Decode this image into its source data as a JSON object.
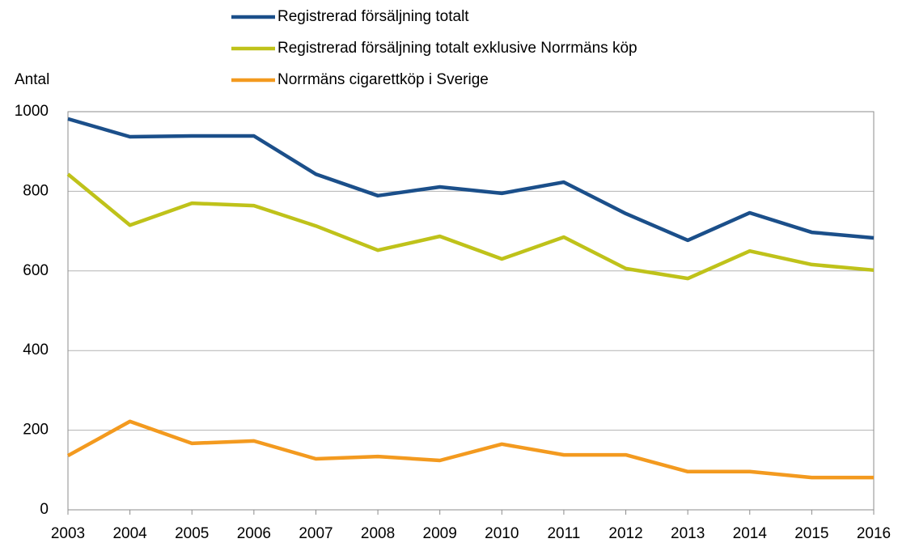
{
  "chart_data": {
    "type": "line",
    "y_axis_label": "Antal",
    "x": [
      2003,
      2004,
      2005,
      2006,
      2007,
      2008,
      2009,
      2010,
      2011,
      2012,
      2013,
      2014,
      2015,
      2016
    ],
    "xlim": [
      2003,
      2016
    ],
    "xticks": [
      2003,
      2004,
      2005,
      2006,
      2007,
      2008,
      2009,
      2010,
      2011,
      2012,
      2013,
      2014,
      2015,
      2016
    ],
    "ylim": [
      0,
      1000
    ],
    "yticks": [
      0,
      200,
      400,
      600,
      800,
      1000
    ],
    "grid": true,
    "legend": "top",
    "series": [
      {
        "name": "Registrerad försäljning totalt",
        "color": "#1b4f8a",
        "values": [
          982,
          937,
          939,
          939,
          843,
          789,
          811,
          795,
          823,
          744,
          677,
          746,
          697,
          683
        ]
      },
      {
        "name": "Registrerad försäljning totalt exklusive Norrmäns köp",
        "color": "#bfc21a",
        "values": [
          843,
          715,
          770,
          764,
          713,
          652,
          687,
          630,
          685,
          606,
          581,
          650,
          616,
          602
        ]
      },
      {
        "name": "Norrmäns cigarettköp i Sverige",
        "color": "#f39a1f",
        "values": [
          136,
          222,
          167,
          173,
          128,
          134,
          124,
          165,
          138,
          138,
          96,
          96,
          81,
          81
        ]
      }
    ]
  }
}
